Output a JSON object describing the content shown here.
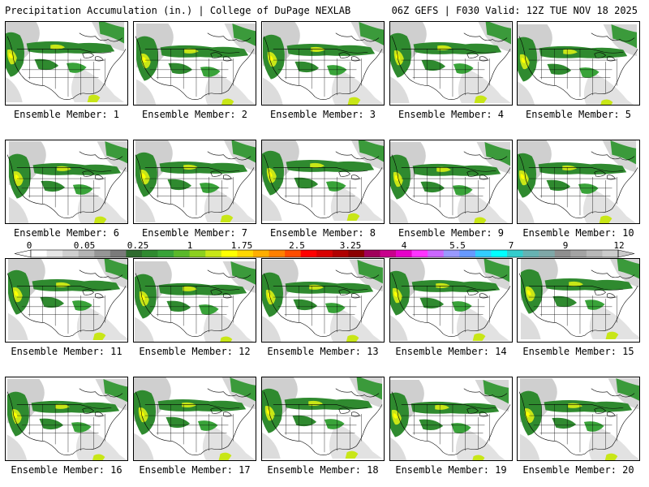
{
  "header": {
    "title": "Precipitation Accumulation (in.) | College of DuPage NEXLAB",
    "run_info": "06Z GEFS | F030 Valid: 12Z TUE NOV 18 2025"
  },
  "members": [
    "Ensemble Member: 1",
    "Ensemble Member: 2",
    "Ensemble Member: 3",
    "Ensemble Member: 4",
    "Ensemble Member: 5",
    "Ensemble Member: 6",
    "Ensemble Member: 7",
    "Ensemble Member: 8",
    "Ensemble Member: 9",
    "Ensemble Member: 10",
    "Ensemble Member: 11",
    "Ensemble Member: 12",
    "Ensemble Member: 13",
    "Ensemble Member: 14",
    "Ensemble Member: 15",
    "Ensemble Member: 16",
    "Ensemble Member: 17",
    "Ensemble Member: 18",
    "Ensemble Member: 19",
    "Ensemble Member: 20"
  ],
  "colorbar": {
    "labels": [
      "0",
      "0.05",
      "0.25",
      "1",
      "1.75",
      "2.5",
      "3.25",
      "4",
      "5.5",
      "7",
      "9",
      "12"
    ],
    "colors": [
      "#ffffff",
      "#e6e6e6",
      "#cfcfcf",
      "#b4b4b4",
      "#969696",
      "#7a7a7a",
      "#2e6b2e",
      "#2f8a2f",
      "#39a339",
      "#5ab82a",
      "#8ccf1e",
      "#c8e617",
      "#ffff00",
      "#ffd700",
      "#ffae00",
      "#ff8000",
      "#ff4d00",
      "#ff0000",
      "#d80000",
      "#b00000",
      "#8b0000",
      "#a0005a",
      "#c8008c",
      "#e600c8",
      "#ff33ff",
      "#cc66ff",
      "#9999ff",
      "#6699ff",
      "#33ccff",
      "#00ffff",
      "#33cccc",
      "#66b2b2",
      "#7fa7a7",
      "#8f8f8f",
      "#a3a3a3",
      "#b8b8b8",
      "#cccccc"
    ]
  }
}
